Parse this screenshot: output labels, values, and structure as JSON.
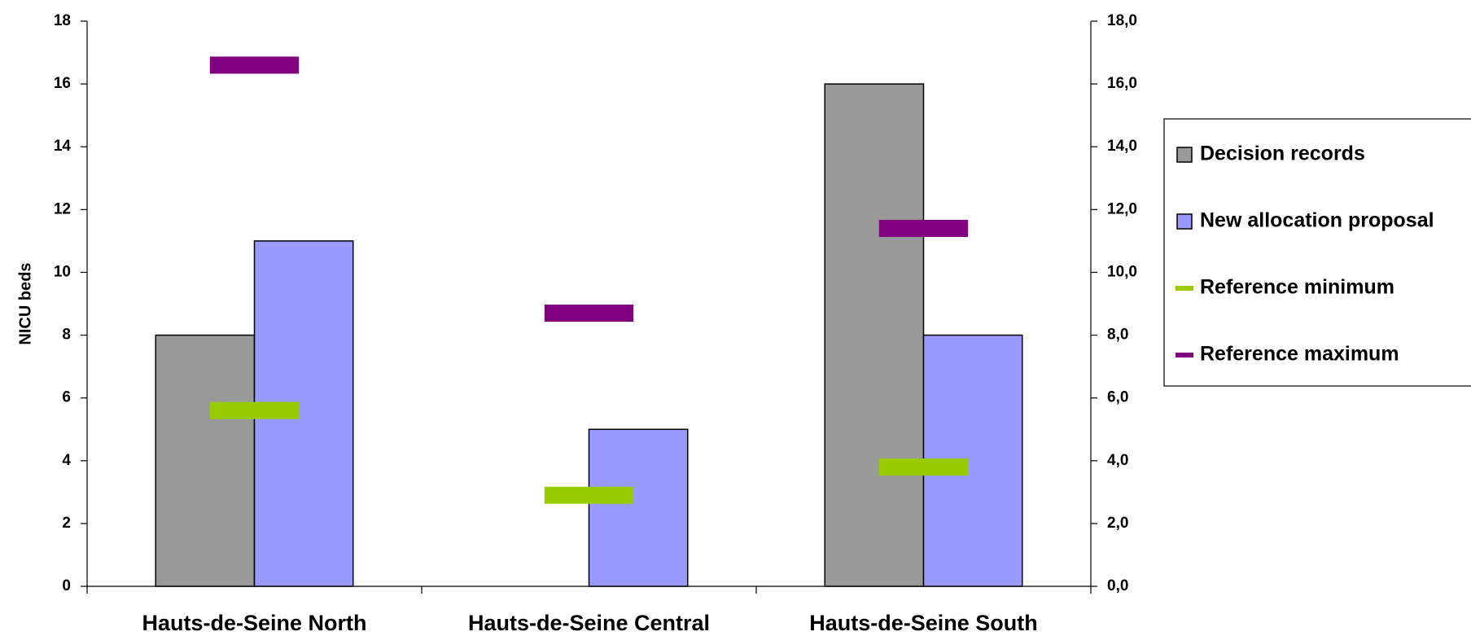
{
  "chart_data": {
    "type": "bar",
    "ylabel": "NICU beds",
    "categories": [
      "Hauts-de-Seine North",
      "Hauts-de-Seine Central",
      "Hauts-de-Seine South"
    ],
    "series": [
      {
        "name": "Decision records",
        "color": "#999999",
        "style": "bar",
        "values": [
          8,
          null,
          16
        ]
      },
      {
        "name": "New allocation proposal",
        "color": "#9999ff",
        "style": "bar",
        "values": [
          11,
          5,
          8
        ]
      },
      {
        "name": "Reference minimum",
        "color": "#99cc00",
        "style": "marker",
        "values": [
          5.6,
          2.9,
          3.8
        ]
      },
      {
        "name": "Reference maximum",
        "color": "#800080",
        "style": "marker",
        "values": [
          16.6,
          8.7,
          11.4
        ]
      }
    ],
    "ylim": [
      0,
      18
    ],
    "yticks": [
      0,
      2,
      4,
      6,
      8,
      10,
      12,
      14,
      16,
      18
    ],
    "y2lim": [
      0,
      18
    ],
    "y2ticks": [
      {
        "value": 0,
        "label": "0,0"
      },
      {
        "value": 2,
        "label": "2,0"
      },
      {
        "value": 4,
        "label": "4,0"
      },
      {
        "value": 6,
        "label": "6,0"
      },
      {
        "value": 8,
        "label": "8,0"
      },
      {
        "value": 10,
        "label": "10,0"
      },
      {
        "value": 12,
        "label": "12,0"
      },
      {
        "value": 14,
        "label": "14,0"
      },
      {
        "value": 16,
        "label": "16,0"
      },
      {
        "value": 18,
        "label": "18,0"
      }
    ],
    "legend": "right"
  }
}
